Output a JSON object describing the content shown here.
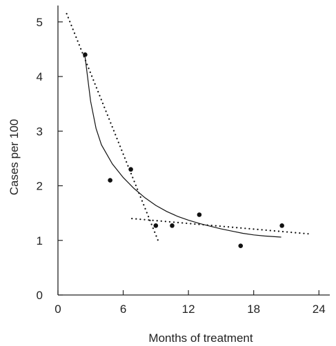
{
  "chart_data": {
    "type": "scatter",
    "title": "",
    "xlabel": "Months of treatment",
    "ylabel": "Cases per 100",
    "xlim": [
      0,
      25
    ],
    "ylim": [
      0,
      5.3
    ],
    "xticks": [
      "0",
      "6",
      "12",
      "18",
      "24"
    ],
    "yticks": [
      "0",
      "1",
      "2",
      "3",
      "4",
      "5"
    ],
    "grid": false,
    "legend": "none",
    "series": [
      {
        "kind": "points",
        "x": [
          2.5,
          4.8,
          6.7,
          9.0,
          10.5,
          13.0,
          16.8,
          20.6
        ],
        "y": [
          4.4,
          2.1,
          2.3,
          1.27,
          1.27,
          1.47,
          0.9,
          1.27
        ]
      },
      {
        "kind": "solid-curve",
        "x": [
          2.5,
          3.0,
          3.5,
          4.0,
          5.0,
          6.0,
          7.0,
          8.0,
          9.0,
          10.0,
          11.0,
          12.0,
          13.0,
          14.0,
          15.0,
          16.0,
          17.0,
          18.0,
          19.0,
          20.5
        ],
        "y": [
          4.35,
          3.55,
          3.05,
          2.75,
          2.4,
          2.15,
          1.95,
          1.78,
          1.64,
          1.53,
          1.44,
          1.37,
          1.31,
          1.26,
          1.21,
          1.17,
          1.13,
          1.1,
          1.08,
          1.06
        ]
      },
      {
        "kind": "dotted-line-steep",
        "x": [
          0.8,
          9.3
        ],
        "y": [
          5.15,
          0.95
        ]
      },
      {
        "kind": "dotted-line-flat",
        "x": [
          6.8,
          23.0
        ],
        "y": [
          1.4,
          1.12
        ]
      }
    ]
  }
}
